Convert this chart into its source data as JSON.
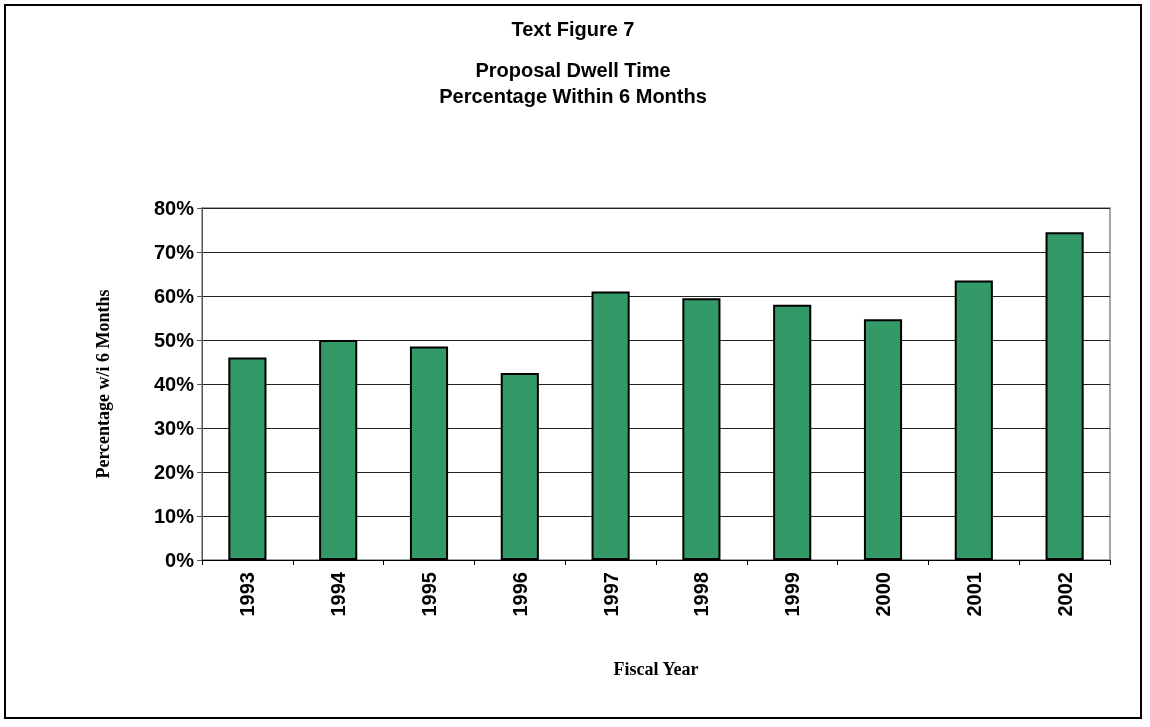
{
  "chart_data": {
    "type": "bar",
    "title": "Text Figure 7",
    "subtitle": "Proposal Dwell Time\nPercentage Within 6 Months",
    "xlabel": "Fiscal Year",
    "ylabel": "Percentage w/i 6 Months",
    "categories": [
      "1993",
      "1994",
      "1995",
      "1996",
      "1997",
      "1998",
      "1999",
      "2000",
      "2001",
      "2002"
    ],
    "values": [
      46,
      50,
      48.5,
      42.5,
      61,
      59.5,
      58,
      54.7,
      63.5,
      74.5
    ],
    "color": "#339966",
    "ylim": [
      0,
      80
    ],
    "yticks": [
      {
        "value": 0,
        "label": "0%"
      },
      {
        "value": 10,
        "label": "10%"
      },
      {
        "value": 20,
        "label": "20%"
      },
      {
        "value": 30,
        "label": "30%"
      },
      {
        "value": 40,
        "label": "40%"
      },
      {
        "value": 50,
        "label": "50%"
      },
      {
        "value": 60,
        "label": "60%"
      },
      {
        "value": 70,
        "label": "70%"
      },
      {
        "value": 80,
        "label": "80%"
      }
    ],
    "grid": "y"
  }
}
